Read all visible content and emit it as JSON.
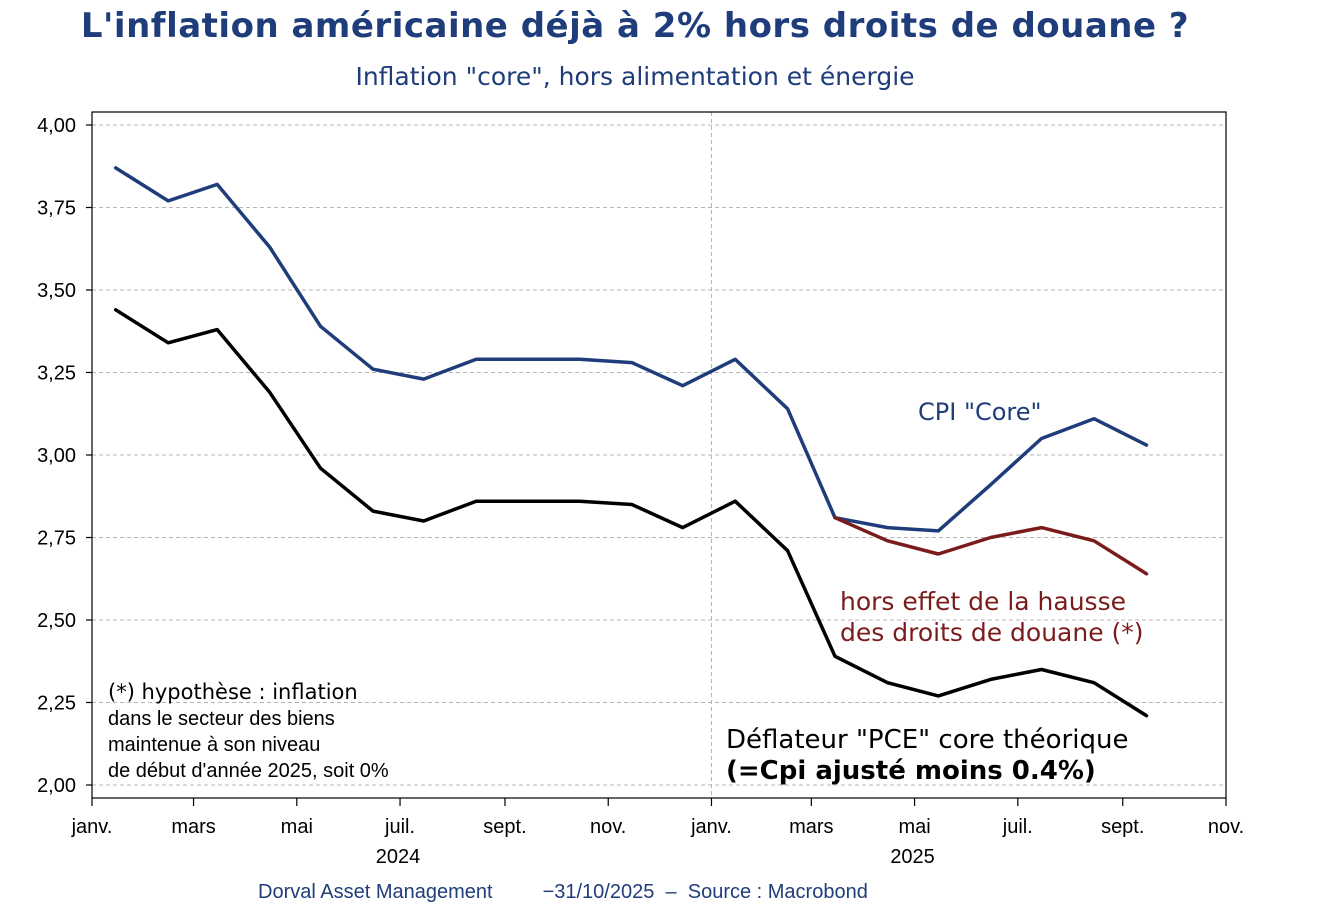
{
  "title": "L'inflation américaine déjà à 2% hors droits de douane ?",
  "subtitle": "Inflation \"core\", hors alimentation et énergie",
  "footer": {
    "author": "Dorval Asset Management",
    "date": "−31/10/2025",
    "separator": "–",
    "source": "Source : Macrobond"
  },
  "chart_data": {
    "type": "line",
    "ylim": [
      2.0,
      4.0
    ],
    "yticks": [
      "2,00",
      "2,25",
      "2,50",
      "2,75",
      "3,00",
      "3,25",
      "3,50",
      "3,75",
      "4,00"
    ],
    "ytick_values": [
      2.0,
      2.25,
      2.5,
      2.75,
      3.0,
      3.25,
      3.5,
      3.75,
      4.0
    ],
    "xlim": [
      "2024-01-01",
      "2025-11-01"
    ],
    "xticks": [
      {
        "label": "janv.",
        "date": "2024-01-01"
      },
      {
        "label": "mars",
        "date": "2024-03-01"
      },
      {
        "label": "mai",
        "date": "2024-05-01"
      },
      {
        "label": "juil.",
        "date": "2024-07-01"
      },
      {
        "label": "sept.",
        "date": "2024-09-01"
      },
      {
        "label": "nov.",
        "date": "2024-11-01"
      },
      {
        "label": "janv.",
        "date": "2025-01-01"
      },
      {
        "label": "mars",
        "date": "2025-03-01"
      },
      {
        "label": "mai",
        "date": "2025-05-01"
      },
      {
        "label": "juil.",
        "date": "2025-07-01"
      },
      {
        "label": "sept.",
        "date": "2025-09-01"
      },
      {
        "label": "nov.",
        "date": "2025-11-01"
      }
    ],
    "year_labels": [
      {
        "label": "2024",
        "date": "2024-07-01"
      },
      {
        "label": "2025",
        "date": "2025-05-01"
      }
    ],
    "separator_date": "2025-01-01",
    "grid": true,
    "series": [
      {
        "name": "CPI \"Core\"",
        "color": "#1f3d7a",
        "points": [
          [
            "2024-01-15",
            3.87
          ],
          [
            "2024-02-15",
            3.77
          ],
          [
            "2024-03-15",
            3.82
          ],
          [
            "2024-04-15",
            3.63
          ],
          [
            "2024-05-15",
            3.39
          ],
          [
            "2024-06-15",
            3.26
          ],
          [
            "2024-07-15",
            3.23
          ],
          [
            "2024-08-15",
            3.29
          ],
          [
            "2024-09-15",
            3.29
          ],
          [
            "2024-10-15",
            3.29
          ],
          [
            "2024-11-15",
            3.28
          ],
          [
            "2024-12-15",
            3.21
          ],
          [
            "2025-01-15",
            3.29
          ],
          [
            "2025-02-15",
            3.14
          ],
          [
            "2025-03-15",
            2.81
          ],
          [
            "2025-04-15",
            2.78
          ],
          [
            "2025-05-15",
            2.77
          ],
          [
            "2025-06-15",
            2.91
          ],
          [
            "2025-07-15",
            3.05
          ],
          [
            "2025-08-15",
            3.11
          ],
          [
            "2025-09-15",
            3.03
          ]
        ]
      },
      {
        "name": "hors effet de la hausse des droits de douane (*)",
        "color": "#7a1c1c",
        "points": [
          [
            "2025-03-15",
            2.81
          ],
          [
            "2025-04-15",
            2.74
          ],
          [
            "2025-05-15",
            2.7
          ],
          [
            "2025-06-15",
            2.75
          ],
          [
            "2025-07-15",
            2.78
          ],
          [
            "2025-08-15",
            2.74
          ],
          [
            "2025-09-15",
            2.64
          ]
        ]
      },
      {
        "name": "Déflateur \"PCE\" core théorique (=Cpi ajusté moins 0.4%)",
        "color": "#000000",
        "points": [
          [
            "2024-01-15",
            3.44
          ],
          [
            "2024-02-15",
            3.34
          ],
          [
            "2024-03-15",
            3.38
          ],
          [
            "2024-04-15",
            3.19
          ],
          [
            "2024-05-15",
            2.96
          ],
          [
            "2024-06-15",
            2.83
          ],
          [
            "2024-07-15",
            2.8
          ],
          [
            "2024-08-15",
            2.86
          ],
          [
            "2024-09-15",
            2.86
          ],
          [
            "2024-10-15",
            2.86
          ],
          [
            "2024-11-15",
            2.85
          ],
          [
            "2024-12-15",
            2.78
          ],
          [
            "2025-01-15",
            2.86
          ],
          [
            "2025-02-15",
            2.71
          ],
          [
            "2025-03-15",
            2.39
          ],
          [
            "2025-04-15",
            2.31
          ],
          [
            "2025-05-15",
            2.27
          ],
          [
            "2025-06-15",
            2.32
          ],
          [
            "2025-07-15",
            2.35
          ],
          [
            "2025-08-15",
            2.31
          ],
          [
            "2025-09-15",
            2.21
          ]
        ]
      }
    ],
    "annotations": {
      "cpi": "CPI \"Core\"",
      "tariff_line1": "hors effet de la hausse",
      "tariff_line2": "des droits de douane (*)",
      "pce_line1": "Déflateur \"PCE\" core théorique",
      "pce_line2": "(=Cpi ajusté moins 0.4%)",
      "note_line1": "(*) hypothèse : inflation",
      "note_line2": "dans le secteur des biens",
      "note_line3": "maintenue à son niveau",
      "note_line4": "de début d'année 2025, soit 0%"
    }
  }
}
